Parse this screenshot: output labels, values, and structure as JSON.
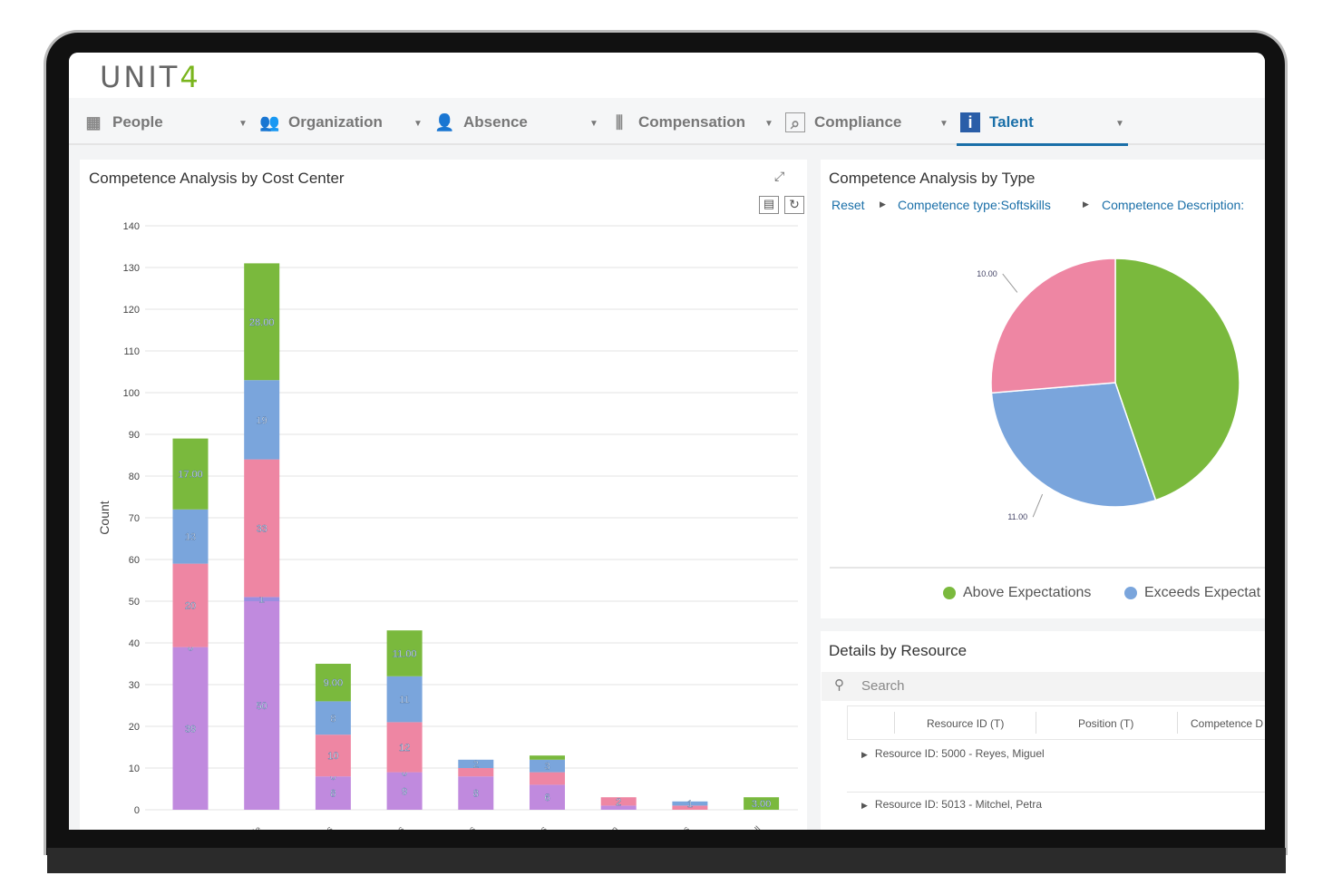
{
  "app": {
    "logo": "UNIT4"
  },
  "nav": [
    {
      "label": "People",
      "icon": "grid-icon"
    },
    {
      "label": "Organization",
      "icon": "group-icon"
    },
    {
      "label": "Absence",
      "icon": "person-icon"
    },
    {
      "label": "Compensation",
      "icon": "money-icon"
    },
    {
      "label": "Compliance",
      "icon": "document-search-icon"
    },
    {
      "label": "Talent",
      "icon": "info-icon",
      "active": true
    }
  ],
  "cost_center_panel": {
    "title": "Competence Analysis by Cost Center"
  },
  "type_panel": {
    "title": "Competence Analysis by Type",
    "breadcrumb": [
      "Reset",
      "Competence type:Softskills",
      "Competence Description:"
    ],
    "legend": [
      "Above Expectations",
      "Exceeds Expectat"
    ]
  },
  "details_panel": {
    "title": "Details by Resource",
    "search_placeholder": "Search",
    "columns": [
      "Resource ID (T)",
      "Position (T)",
      "Competence D"
    ],
    "rows": [
      "Resource ID: 5000 - Reyes, Miguel",
      "Resource ID: 5013 - Mitchel, Petra"
    ]
  },
  "colors": {
    "purple": "#c08ade",
    "violet": "#9a8ee0",
    "pink": "#ee86a3",
    "blue": "#7aa5dc",
    "green": "#7ab93d",
    "accent": "#1a6fa8"
  },
  "chart_data": [
    {
      "type": "bar",
      "stacked": true,
      "ylabel": "Count",
      "ylim": [
        0,
        140
      ],
      "yticks": [
        0,
        10,
        20,
        30,
        40,
        50,
        60,
        70,
        80,
        90,
        100,
        110,
        120,
        130,
        140
      ],
      "grid": true,
      "categories": [
        "…",
        "…de",
        "…es",
        "…es",
        "…es",
        "…es",
        "…ion",
        "…es",
        "…oll"
      ],
      "series": [
        {
          "color": "#c08ade",
          "values": [
            39,
            50,
            8,
            9,
            8,
            6,
            1,
            0,
            0
          ],
          "labels": [
            "39",
            "50",
            "8",
            "9",
            "8",
            "6",
            "",
            "",
            ""
          ]
        },
        {
          "color": "#9a8ee0",
          "values": [
            0,
            1,
            0,
            0,
            0,
            0,
            0,
            0,
            0
          ],
          "labels": [
            "0",
            "1",
            "0",
            "0",
            "",
            "",
            "",
            "",
            ""
          ]
        },
        {
          "color": "#ee86a3",
          "values": [
            20,
            33,
            10,
            12,
            2,
            3,
            2,
            1,
            0
          ],
          "labels": [
            "20",
            "33",
            "10",
            "12",
            "",
            "",
            "2",
            "",
            ""
          ]
        },
        {
          "color": "#7aa5dc",
          "values": [
            13,
            19,
            8,
            11,
            2,
            3,
            0,
            1,
            0
          ],
          "labels": [
            "13",
            "19",
            "8",
            "11",
            "2",
            "3",
            "",
            "1",
            ""
          ]
        },
        {
          "color": "#7ab93d",
          "values": [
            17,
            28,
            9,
            11,
            0,
            1,
            0,
            0,
            3
          ],
          "labels": [
            "17.00",
            "28.00",
            "9.00",
            "11.00",
            "",
            "",
            "",
            "",
            "3.00"
          ]
        }
      ]
    },
    {
      "type": "pie",
      "slices": [
        {
          "name": "Above Expectations",
          "value": 17,
          "color": "#7ab93d",
          "label": ""
        },
        {
          "name": "Exceeds Expectat",
          "value": 11,
          "color": "#7aa5dc",
          "label": "11.00"
        },
        {
          "value": 10,
          "color": "#ee86a3",
          "label": "10.00"
        }
      ]
    }
  ]
}
